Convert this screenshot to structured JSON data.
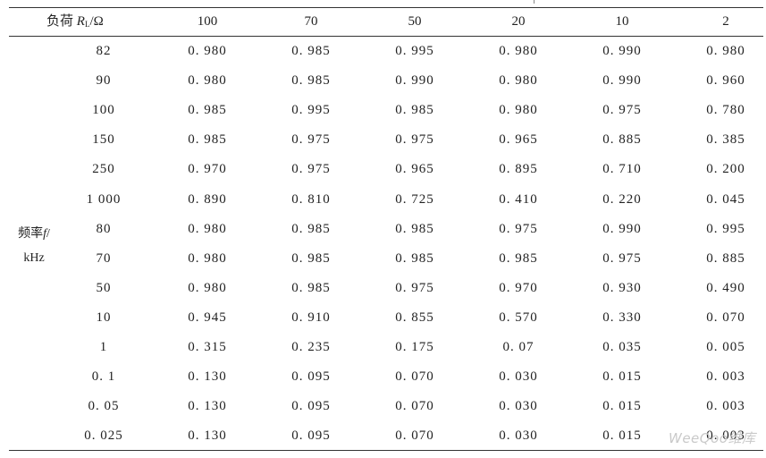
{
  "header": {
    "load_label": "负荷",
    "symbol": "R",
    "subscript": "L",
    "unit": "/Ω",
    "columns": [
      "100",
      "70",
      "50",
      "20",
      "10",
      "2"
    ]
  },
  "row_group_label": {
    "line1_prefix": "频率",
    "line1_symbol": "f",
    "line1_suffix": "/",
    "line2": "kHz"
  },
  "rows": [
    {
      "freq": "82",
      "values": [
        "0. 980",
        "0. 985",
        "0. 995",
        "0. 980",
        "0. 990",
        "0. 980"
      ]
    },
    {
      "freq": "90",
      "values": [
        "0. 980",
        "0. 985",
        "0. 990",
        "0. 980",
        "0. 990",
        "0. 960"
      ]
    },
    {
      "freq": "100",
      "values": [
        "0. 985",
        "0. 995",
        "0. 985",
        "0. 980",
        "0. 975",
        "0. 780"
      ]
    },
    {
      "freq": "150",
      "values": [
        "0. 985",
        "0. 975",
        "0. 975",
        "0. 965",
        "0. 885",
        "0. 385"
      ]
    },
    {
      "freq": "250",
      "values": [
        "0. 970",
        "0. 975",
        "0. 965",
        "0. 895",
        "0. 710",
        "0. 200"
      ]
    },
    {
      "freq": "1 000",
      "values": [
        "0. 890",
        "0. 810",
        "0. 725",
        "0. 410",
        "0. 220",
        "0. 045"
      ]
    },
    {
      "freq": "80",
      "values": [
        "0. 980",
        "0. 985",
        "0. 985",
        "0. 975",
        "0. 990",
        "0. 995"
      ]
    },
    {
      "freq": "70",
      "values": [
        "0. 980",
        "0. 985",
        "0. 985",
        "0. 985",
        "0. 975",
        "0. 885"
      ]
    },
    {
      "freq": "50",
      "values": [
        "0. 980",
        "0. 985",
        "0. 975",
        "0. 970",
        "0. 930",
        "0. 490"
      ]
    },
    {
      "freq": "10",
      "values": [
        "0. 945",
        "0. 910",
        "0. 855",
        "0. 570",
        "0. 330",
        "0. 070"
      ]
    },
    {
      "freq": "1",
      "values": [
        "0. 315",
        "0. 235",
        "0. 175",
        "0. 07",
        "0. 035",
        "0. 005"
      ]
    },
    {
      "freq": "0. 1",
      "values": [
        "0. 130",
        "0. 095",
        "0. 070",
        "0. 030",
        "0. 015",
        "0. 003"
      ]
    },
    {
      "freq": "0. 05",
      "values": [
        "0. 130",
        "0. 095",
        "0. 070",
        "0. 030",
        "0. 015",
        "0. 003"
      ]
    },
    {
      "freq": "0. 025",
      "values": [
        "0. 130",
        "0. 095",
        "0. 070",
        "0. 030",
        "0. 015",
        "0. 003"
      ]
    }
  ],
  "watermark": "WeeQoo维库"
}
